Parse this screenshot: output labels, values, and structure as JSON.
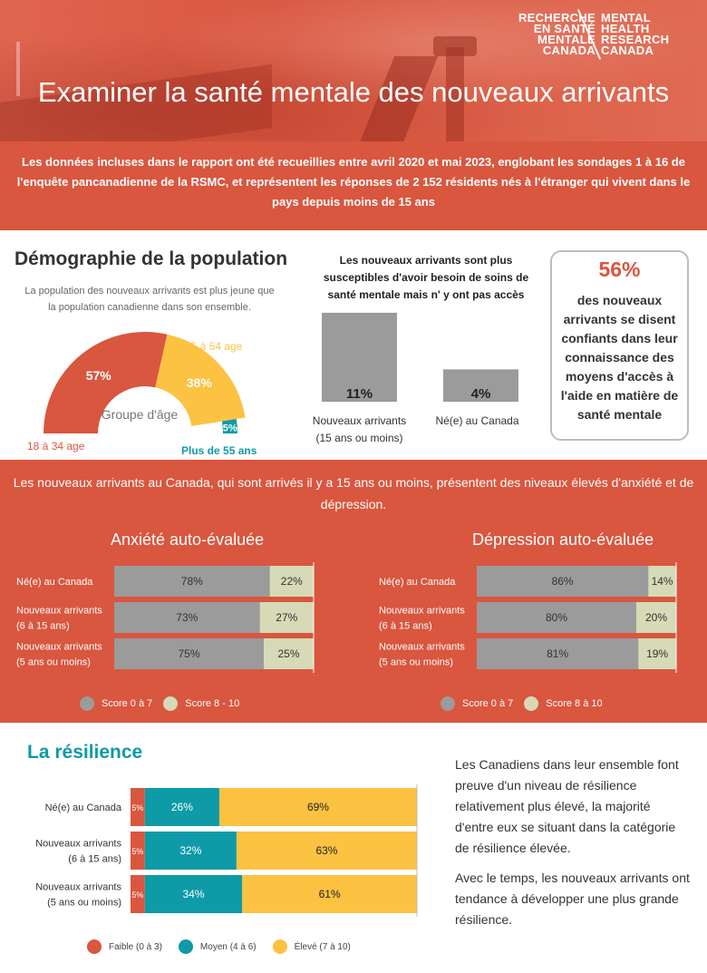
{
  "header": {
    "logo_fr": [
      "RECHERCHE",
      "EN SANTÉ",
      "MENTALE",
      "CANADA"
    ],
    "logo_en": [
      "MENTAL",
      "HEALTH",
      "RESEARCH",
      "CANADA"
    ],
    "title": "Examiner la santé mentale des nouveaux arrivants"
  },
  "intro": "Les données incluses dans le rapport ont été recueillies entre avril 2020 et mai 2023, englobant les sondages 1 à 16 de l'enquête pancanadienne de la RSMC, et représentent les réponses de 2 152 résidents nés à l'étranger qui vivent dans le pays depuis moins de 15 ans",
  "demographics": {
    "title": "Démographie de la population",
    "subtitle": "La population des nouveaux arrivants est plus jeune que la population canadienne dans son ensemble."
  },
  "access": {
    "title": "Les nouveaux arrivants sont plus susceptibles d'avoir besoin de soins de santé mentale mais n' y ont pas accès"
  },
  "stat_box": {
    "percent": "56%",
    "text": "des nouveaux arrivants se disent confiants dans leur connaissance des moyens d'accès à l'aide en matière de santé mentale"
  },
  "band": {
    "text": "Les nouveaux arrivants au Canada, qui sont arrivés il y a 15 ans ou moins, présentent des niveaux élevés d'anxiété et de dépression."
  },
  "resilience": {
    "title": "La résilience",
    "text_1": "Les Canadiens dans leur ensemble font preuve d'un niveau de résilience relativement plus élevé, la majorité d'entre eux se situant dans la catégorie de résilience élevée.",
    "text_2": "Avec le temps, les nouveaux arrivants ont tendance à développer une plus grande résilience."
  },
  "colors": {
    "red": "#d9563f",
    "yellow": "#fcc242",
    "teal": "#0e9aa7",
    "gray": "#9b9b9b",
    "sage": "#d6dab6"
  },
  "chart_data": [
    {
      "type": "pie",
      "title": "Groupe d'âge",
      "categories": [
        "18 à 34 age",
        "35 à 54 age",
        "Plus de 55 ans"
      ],
      "values": [
        57,
        38,
        5
      ],
      "labels": [
        "57%",
        "38%",
        "5%"
      ]
    },
    {
      "type": "bar",
      "categories": [
        "Nouveaux arrivants (15 ans ou moins)",
        "Né(e) au Canada"
      ],
      "category_lines": [
        [
          "Nouveaux arrivants",
          "(15 ans ou moins)"
        ],
        [
          "Né(e) au Canada"
        ]
      ],
      "values": [
        11,
        4
      ],
      "labels": [
        "11%",
        "4%"
      ],
      "ylim": [
        0,
        12
      ]
    },
    {
      "type": "bar",
      "stacked": true,
      "orientation": "horizontal",
      "title": "Anxiété auto-évaluée",
      "categories": [
        "Né(e) au Canada",
        "Nouveaux arrivants (6 à 15 ans)",
        "Nouveaux arrivants (5 ans ou moins)"
      ],
      "category_lines": [
        [
          "Né(e) au Canada"
        ],
        [
          "Nouveaux arrivants",
          " (6 à 15 ans)"
        ],
        [
          "Nouveaux arrivants",
          "(5 ans ou moins)"
        ]
      ],
      "series": [
        {
          "name": "Score 0 à 7",
          "values": [
            78,
            73,
            75
          ],
          "labels": [
            "78%",
            "73%",
            "75%"
          ]
        },
        {
          "name": "Score 8 - 10",
          "values": [
            22,
            27,
            25
          ],
          "labels": [
            "22%",
            "27%",
            "25%"
          ]
        }
      ],
      "xlim": [
        0,
        100
      ]
    },
    {
      "type": "bar",
      "stacked": true,
      "orientation": "horizontal",
      "title": "Dépression auto-évaluée",
      "categories": [
        "Né(e) au Canada",
        "Nouveaux arrivants (6 à 15 ans)",
        "Nouveaux arrivants (5 ans ou moins)"
      ],
      "category_lines": [
        [
          "Né(e) au Canada"
        ],
        [
          "Nouveaux arrivants",
          " (6 à 15 ans)"
        ],
        [
          "Nouveaux arrivants",
          "(5 ans ou moins)"
        ]
      ],
      "series": [
        {
          "name": "Score 0 à 7",
          "values": [
            86,
            80,
            81
          ],
          "labels": [
            "86%",
            "80%",
            "81%"
          ]
        },
        {
          "name": "Score 8 à 10",
          "values": [
            14,
            20,
            19
          ],
          "labels": [
            "14%",
            "20%",
            "19%"
          ]
        }
      ],
      "xlim": [
        0,
        100
      ]
    },
    {
      "type": "bar",
      "stacked": true,
      "orientation": "horizontal",
      "title": "La résilience",
      "categories": [
        "Né(e) au Canada",
        "Nouveaux arrivants (6 à 15 ans)",
        "Nouveaux arrivants (5 ans ou moins)"
      ],
      "category_lines": [
        [
          "Né(e) au Canada"
        ],
        [
          "Nouveaux arrivants",
          " (6 à 15 ans)"
        ],
        [
          "Nouveaux arrivants",
          "(5 ans ou moins)"
        ]
      ],
      "series": [
        {
          "name": "Faible (0 à 3)",
          "values": [
            5,
            5,
            5
          ],
          "labels": [
            "5%",
            "5%",
            "5%"
          ]
        },
        {
          "name": "Moyen (4 à 6)",
          "values": [
            26,
            32,
            34
          ],
          "labels": [
            "26%",
            "32%",
            "34%"
          ]
        },
        {
          "name": "Élevé (7 à 10)",
          "values": [
            69,
            63,
            61
          ],
          "labels": [
            "69%",
            "63%",
            "61%"
          ]
        }
      ],
      "xlim": [
        0,
        100
      ]
    }
  ]
}
